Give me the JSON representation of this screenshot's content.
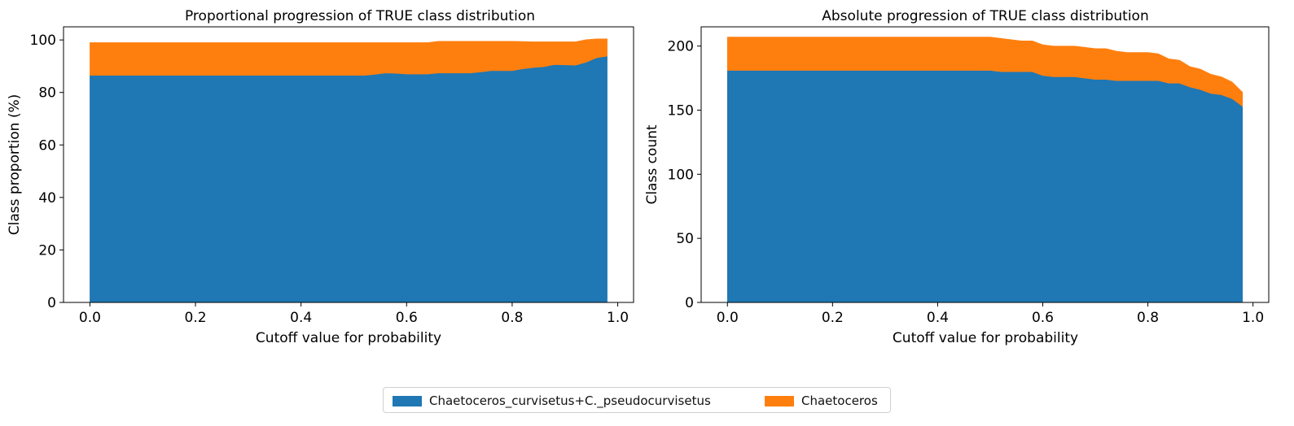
{
  "chart_data": [
    {
      "type": "area",
      "stacked": true,
      "title": "Proportional progression of TRUE class distribution",
      "xlabel": "Cutoff value for probability",
      "ylabel": "Class proportion (%)",
      "xlim": [
        -0.05,
        1.03
      ],
      "ylim": [
        0,
        105
      ],
      "xticks": [
        0.0,
        0.2,
        0.4,
        0.6,
        0.8,
        1.0
      ],
      "xtick_labels": [
        "0.0",
        "0.2",
        "0.4",
        "0.6",
        "0.8",
        "1.0"
      ],
      "yticks": [
        0,
        20,
        40,
        60,
        80,
        100
      ],
      "ytick_labels": [
        "0",
        "20",
        "40",
        "60",
        "80",
        "100"
      ],
      "grid": false,
      "x": [
        0.0,
        0.02,
        0.04,
        0.06,
        0.08,
        0.1,
        0.12,
        0.14,
        0.16,
        0.18,
        0.2,
        0.22,
        0.24,
        0.26,
        0.28,
        0.3,
        0.32,
        0.34,
        0.36,
        0.38,
        0.4,
        0.42,
        0.44,
        0.46,
        0.48,
        0.5,
        0.52,
        0.54,
        0.56,
        0.58,
        0.6,
        0.62,
        0.64,
        0.66,
        0.68,
        0.7,
        0.72,
        0.74,
        0.76,
        0.78,
        0.8,
        0.82,
        0.84,
        0.86,
        0.88,
        0.9,
        0.92,
        0.94,
        0.96,
        0.98
      ],
      "series": [
        {
          "name": "Chaetoceros_curvisetus+C._pseudocurvisetus",
          "values": [
            86.5,
            86.5,
            86.5,
            86.5,
            86.5,
            86.5,
            86.5,
            86.5,
            86.5,
            86.5,
            86.5,
            86.5,
            86.5,
            86.5,
            86.5,
            86.5,
            86.5,
            86.5,
            86.5,
            86.5,
            86.5,
            86.5,
            86.5,
            86.5,
            86.5,
            86.5,
            86.5,
            86.9,
            87.4,
            87.3,
            87.0,
            87.0,
            87.0,
            87.4,
            87.4,
            87.4,
            87.4,
            87.8,
            88.3,
            88.3,
            88.3,
            89.0,
            89.5,
            89.8,
            90.6,
            90.5,
            90.4,
            91.5,
            93.2,
            93.8
          ]
        },
        {
          "name": "Chaetoceros",
          "values": [
            12.5,
            12.5,
            12.5,
            12.5,
            12.5,
            12.5,
            12.5,
            12.5,
            12.5,
            12.5,
            12.5,
            12.5,
            12.5,
            12.5,
            12.5,
            12.5,
            12.5,
            12.5,
            12.5,
            12.5,
            12.5,
            12.5,
            12.5,
            12.5,
            12.5,
            12.5,
            12.5,
            12.1,
            11.6,
            11.7,
            12.0,
            12.0,
            12.0,
            12.1,
            12.1,
            12.1,
            12.1,
            11.7,
            11.2,
            11.2,
            11.2,
            10.4,
            9.8,
            9.5,
            8.7,
            8.8,
            8.9,
            8.6,
            7.2,
            6.6
          ]
        }
      ]
    },
    {
      "type": "area",
      "stacked": true,
      "title": "Absolute progression of TRUE class distribution",
      "xlabel": "Cutoff value for probability",
      "ylabel": "Class count",
      "xlim": [
        -0.05,
        1.03
      ],
      "ylim": [
        0,
        215
      ],
      "xticks": [
        0.0,
        0.2,
        0.4,
        0.6,
        0.8,
        1.0
      ],
      "xtick_labels": [
        "0.0",
        "0.2",
        "0.4",
        "0.6",
        "0.8",
        "1.0"
      ],
      "yticks": [
        0,
        50,
        100,
        150,
        200
      ],
      "ytick_labels": [
        "0",
        "50",
        "100",
        "150",
        "200"
      ],
      "grid": false,
      "x": [
        0.0,
        0.02,
        0.04,
        0.06,
        0.08,
        0.1,
        0.12,
        0.14,
        0.16,
        0.18,
        0.2,
        0.22,
        0.24,
        0.26,
        0.28,
        0.3,
        0.32,
        0.34,
        0.36,
        0.38,
        0.4,
        0.42,
        0.44,
        0.46,
        0.48,
        0.5,
        0.52,
        0.54,
        0.56,
        0.58,
        0.6,
        0.62,
        0.64,
        0.66,
        0.68,
        0.7,
        0.72,
        0.74,
        0.76,
        0.78,
        0.8,
        0.82,
        0.84,
        0.86,
        0.88,
        0.9,
        0.92,
        0.94,
        0.96,
        0.98
      ],
      "series": [
        {
          "name": "Chaetoceros_curvisetus+C._pseudocurvisetus",
          "values": [
            181,
            181,
            181,
            181,
            181,
            181,
            181,
            181,
            181,
            181,
            181,
            181,
            181,
            181,
            181,
            181,
            181,
            181,
            181,
            181,
            181,
            181,
            181,
            181,
            181,
            181,
            180,
            180,
            180,
            180,
            177,
            176,
            176,
            176,
            175,
            174,
            174,
            173,
            173,
            173,
            173,
            173,
            171,
            171,
            168,
            166,
            163,
            162,
            159,
            153
          ]
        },
        {
          "name": "Chaetoceros",
          "values": [
            26,
            26,
            26,
            26,
            26,
            26,
            26,
            26,
            26,
            26,
            26,
            26,
            26,
            26,
            26,
            26,
            26,
            26,
            26,
            26,
            26,
            26,
            26,
            26,
            26,
            26,
            26,
            25,
            24,
            24,
            24,
            24,
            24,
            24,
            24,
            24,
            24,
            23,
            22,
            22,
            22,
            21,
            19,
            18,
            16,
            16,
            15,
            14,
            13,
            11
          ]
        }
      ]
    }
  ],
  "legend": {
    "placement": "bottom-center",
    "items": [
      {
        "label": "Chaetoceros_curvisetus+C._pseudocurvisetus",
        "color": "#1f77b4"
      },
      {
        "label": "Chaetoceros",
        "color": "#ff7f0e"
      }
    ]
  },
  "colors": {
    "series": [
      "#1f77b4",
      "#ff7f0e"
    ],
    "axis": "#000000"
  }
}
